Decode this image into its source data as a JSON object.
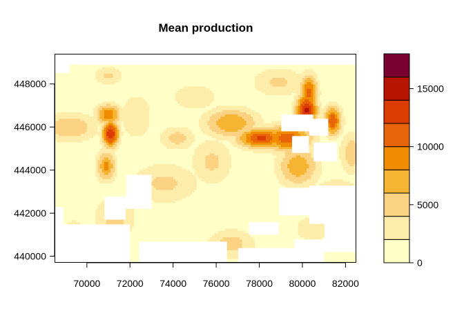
{
  "chart_data": {
    "type": "heatmap",
    "title": "Mean production",
    "xlabel": "",
    "ylabel": "",
    "x_ticks": [
      70000,
      72000,
      74000,
      76000,
      78000,
      80000,
      82000
    ],
    "y_ticks": [
      440000,
      442000,
      444000,
      446000,
      448000
    ],
    "xlim": [
      68500,
      82500
    ],
    "ylim": [
      439700,
      449400
    ],
    "legend": {
      "placement": "right",
      "breaks": [
        0,
        2000,
        4000,
        6000,
        8000,
        10000,
        12000,
        14000,
        16000,
        18000
      ],
      "colors": [
        "#FFFFC8",
        "#FEECAA",
        "#FAD282",
        "#F5B432",
        "#F08C00",
        "#E8640A",
        "#DC3C00",
        "#B41400",
        "#7A0030"
      ],
      "tick_labels": [
        "0",
        "5000",
        "10000",
        "15000"
      ],
      "tick_values": [
        0,
        5000,
        10000,
        15000
      ]
    },
    "field": {
      "base_value": 1000,
      "hotspots": [
        {
          "x": 71100,
          "y": 445700,
          "value": 14000,
          "sx": 280,
          "sy": 450
        },
        {
          "x": 71000,
          "y": 446600,
          "value": 9500,
          "sx": 420,
          "sy": 350
        },
        {
          "x": 70900,
          "y": 444200,
          "value": 8500,
          "sx": 320,
          "sy": 500
        },
        {
          "x": 71000,
          "y": 448400,
          "value": 4500,
          "sx": 500,
          "sy": 300
        },
        {
          "x": 69200,
          "y": 446000,
          "value": 6000,
          "sx": 900,
          "sy": 500
        },
        {
          "x": 76700,
          "y": 446200,
          "value": 8000,
          "sx": 900,
          "sy": 500
        },
        {
          "x": 78100,
          "y": 445500,
          "value": 12500,
          "sx": 800,
          "sy": 350
        },
        {
          "x": 79300,
          "y": 445500,
          "value": 11500,
          "sx": 800,
          "sy": 450
        },
        {
          "x": 80200,
          "y": 446800,
          "value": 14500,
          "sx": 350,
          "sy": 550
        },
        {
          "x": 80300,
          "y": 447600,
          "value": 11000,
          "sx": 300,
          "sy": 600
        },
        {
          "x": 81400,
          "y": 446300,
          "value": 11500,
          "sx": 300,
          "sy": 500
        },
        {
          "x": 79800,
          "y": 444200,
          "value": 7500,
          "sx": 700,
          "sy": 700
        },
        {
          "x": 73600,
          "y": 443400,
          "value": 4500,
          "sx": 1200,
          "sy": 700
        },
        {
          "x": 75800,
          "y": 444400,
          "value": 4500,
          "sx": 700,
          "sy": 800
        },
        {
          "x": 74200,
          "y": 445500,
          "value": 5000,
          "sx": 600,
          "sy": 400
        },
        {
          "x": 71300,
          "y": 441800,
          "value": 5000,
          "sx": 700,
          "sy": 700
        },
        {
          "x": 69400,
          "y": 440800,
          "value": 5500,
          "sx": 500,
          "sy": 600
        },
        {
          "x": 76700,
          "y": 440600,
          "value": 5000,
          "sx": 800,
          "sy": 500
        },
        {
          "x": 78900,
          "y": 448100,
          "value": 4500,
          "sx": 900,
          "sy": 500
        },
        {
          "x": 82300,
          "y": 444800,
          "value": 5500,
          "sx": 400,
          "sy": 700
        },
        {
          "x": 81600,
          "y": 442700,
          "value": 4500,
          "sx": 900,
          "sy": 700
        },
        {
          "x": 75000,
          "y": 447400,
          "value": 3500,
          "sx": 900,
          "sy": 500
        },
        {
          "x": 72300,
          "y": 446500,
          "value": 3500,
          "sx": 600,
          "sy": 900
        },
        {
          "x": 80500,
          "y": 441300,
          "value": 3500,
          "sx": 700,
          "sy": 500
        }
      ],
      "missing_regions": [
        {
          "x": [
            68500,
            72000
          ],
          "y": [
            439700,
            441500
          ],
          "test": "tl"
        },
        {
          "x": [
            79000,
            80500
          ],
          "y": [
            445800,
            446600
          ]
        },
        {
          "x": [
            80300,
            81200
          ],
          "y": [
            445600,
            446400
          ]
        },
        {
          "x": [
            79500,
            80300
          ],
          "y": [
            444800,
            445600
          ]
        },
        {
          "x": [
            80500,
            81600
          ],
          "y": [
            444400,
            445300
          ]
        },
        {
          "x": [
            71800,
            73000
          ],
          "y": [
            442200,
            443800
          ]
        },
        {
          "x": [
            70800,
            71800
          ],
          "y": [
            441700,
            442800
          ]
        },
        {
          "x": [
            68500,
            68900
          ],
          "y": [
            441200,
            442300
          ]
        },
        {
          "x": [
            81000,
            82500
          ],
          "y": [
            440200,
            441500
          ]
        },
        {
          "x": [
            79600,
            81000
          ],
          "y": [
            439700,
            440800
          ]
        },
        {
          "x": [
            80300,
            82500
          ],
          "y": [
            441500,
            443300
          ]
        },
        {
          "x": [
            78900,
            80300
          ],
          "y": [
            441900,
            443200
          ]
        },
        {
          "x": [
            77500,
            78900
          ],
          "y": [
            441000,
            441600
          ]
        },
        {
          "x": [
            72400,
            76500
          ],
          "y": [
            439700,
            440700
          ]
        },
        {
          "x": [
            68500,
            69200
          ],
          "y": [
            448500,
            449400
          ]
        },
        {
          "x": [
            77000,
            80000
          ],
          "y": [
            439700,
            440400
          ]
        }
      ]
    }
  }
}
